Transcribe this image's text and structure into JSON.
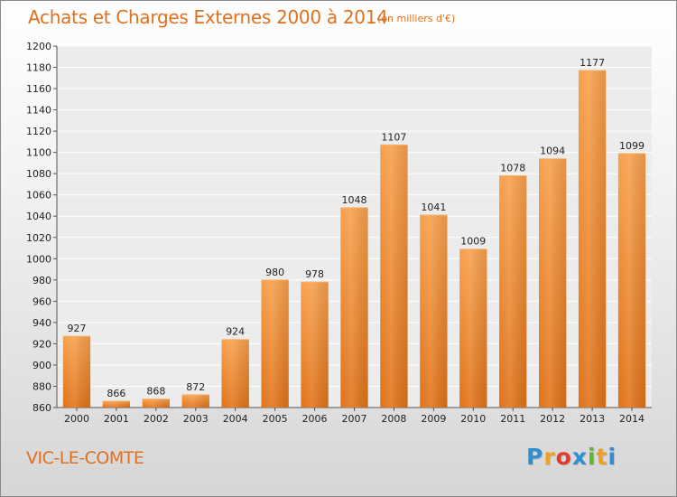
{
  "chart_data": {
    "type": "bar",
    "title": "Achats et Charges Externes 2000 à 2014",
    "unit_label": "(en milliers d'€)",
    "categories": [
      "2000",
      "2001",
      "2002",
      "2003",
      "2004",
      "2005",
      "2006",
      "2007",
      "2008",
      "2009",
      "2010",
      "2011",
      "2012",
      "2013",
      "2014"
    ],
    "values": [
      927,
      866,
      868,
      872,
      924,
      980,
      978,
      1048,
      1107,
      1041,
      1009,
      1078,
      1094,
      1177,
      1099
    ],
    "ylim": [
      860,
      1200
    ],
    "yticks": [
      860,
      880,
      900,
      920,
      940,
      960,
      980,
      1000,
      1020,
      1040,
      1060,
      1080,
      1100,
      1120,
      1140,
      1160,
      1180,
      1200
    ],
    "grid": true,
    "bar_color": "#f08a2c"
  },
  "place_name": "VIC-LE-COMTE",
  "logo": {
    "letters": [
      "P",
      "r",
      "o",
      "x",
      "i",
      "t",
      "i"
    ],
    "colors": [
      "#2f8fd6",
      "#f0a020",
      "#e23b2e",
      "#2f8fd6",
      "#5cb832",
      "#f0a020",
      "#2f8fd6"
    ]
  }
}
